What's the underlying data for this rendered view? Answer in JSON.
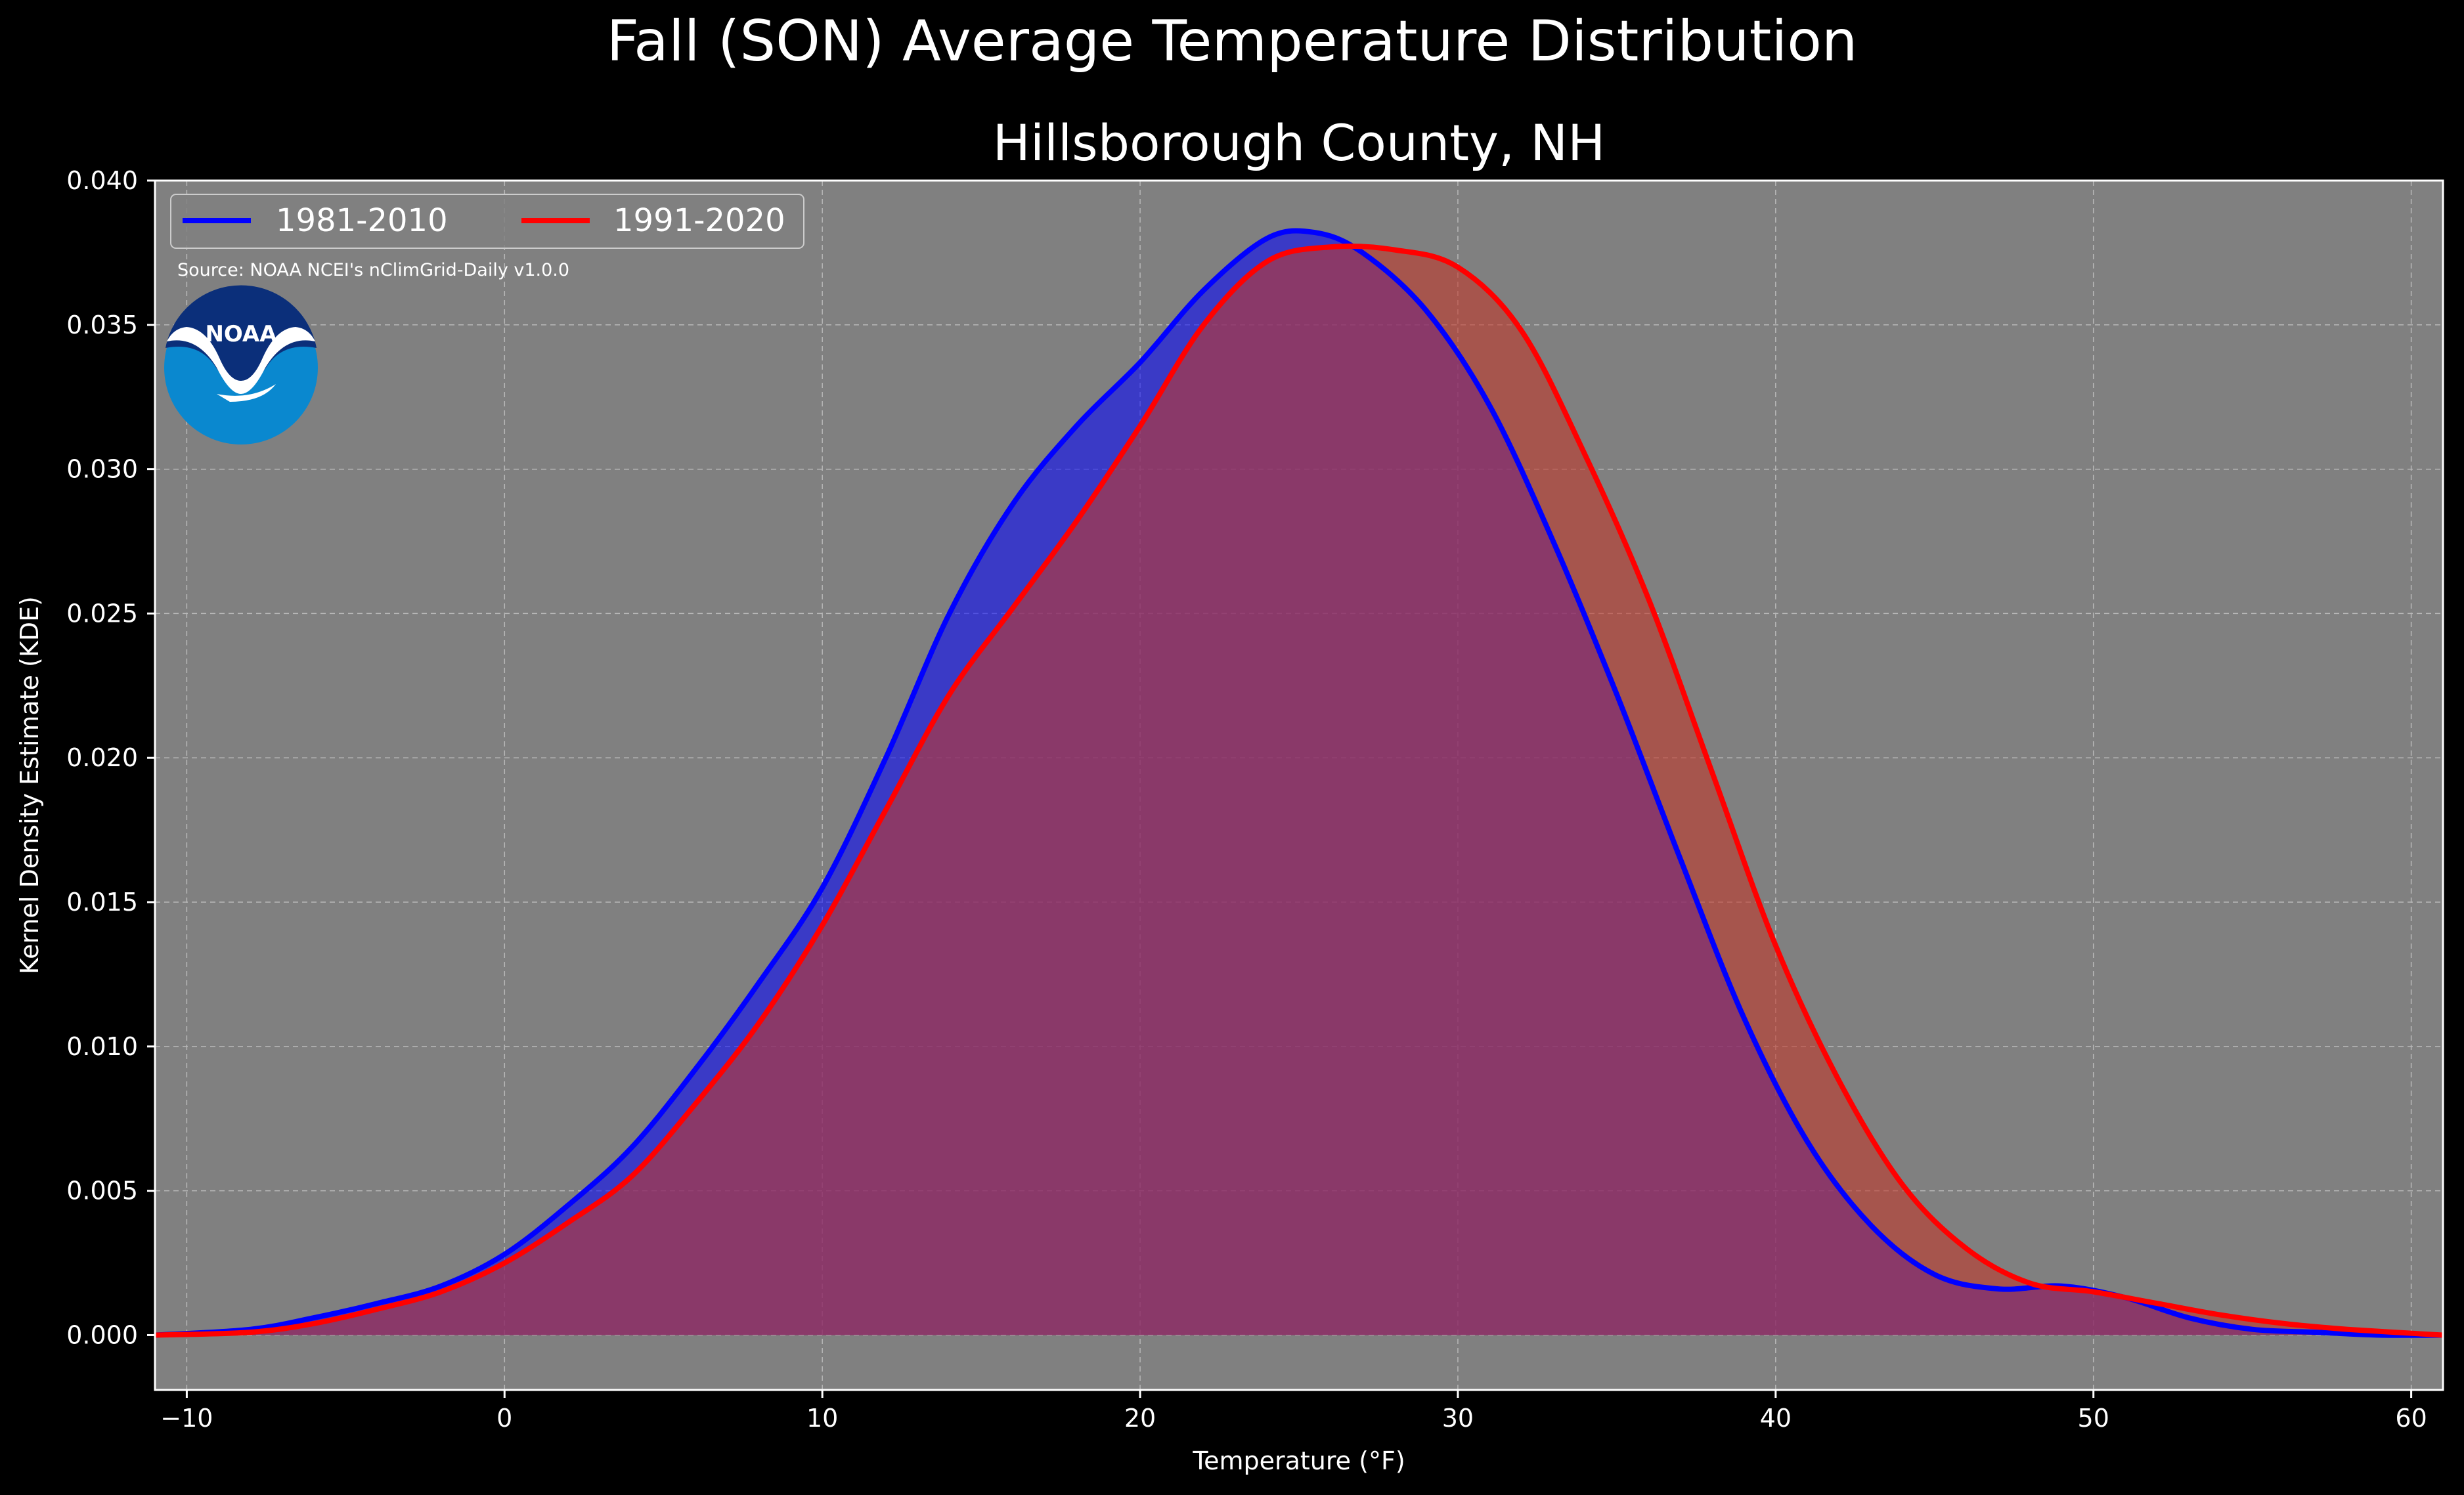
{
  "chart_data": {
    "type": "area",
    "title": "Fall (SON) Average Temperature Distribution",
    "subtitle": "Hillsborough County, NH",
    "xlabel": "Temperature (°F)",
    "ylabel": "Kernel Density Estimate (KDE)",
    "xlim": [
      -11,
      61
    ],
    "ylim": [
      -0.0019,
      0.04
    ],
    "xticks": [
      -10,
      0,
      10,
      20,
      30,
      40,
      50,
      60
    ],
    "xtick_labels": [
      "−10",
      "0",
      "10",
      "20",
      "30",
      "40",
      "50",
      "60"
    ],
    "yticks": [
      0.0,
      0.005,
      0.01,
      0.015,
      0.02,
      0.025,
      0.03,
      0.035,
      0.04
    ],
    "ytick_labels": [
      "0.000",
      "0.005",
      "0.010",
      "0.015",
      "0.020",
      "0.025",
      "0.030",
      "0.035",
      "0.040"
    ],
    "grid": true,
    "legend_position": "top-left",
    "background": "#808080",
    "annotation": "Source: NOAA NCEI's nClimGrid-Daily v1.0.0",
    "logo_text": "NOAA",
    "series": [
      {
        "name": "1981-2010",
        "color": "#0000ff",
        "fill": "#0000ff",
        "x": [
          -11,
          -8,
          -6,
          -4,
          -2,
          0,
          2,
          4,
          6,
          8,
          10,
          12,
          14,
          16,
          18,
          20,
          22,
          24,
          25.5,
          27,
          29,
          31,
          33,
          35,
          37,
          39,
          41,
          43,
          45,
          47,
          49,
          51,
          53,
          55,
          57,
          59,
          61
        ],
        "y": [
          0.0,
          0.0002,
          0.0006,
          0.0011,
          0.0017,
          0.0028,
          0.0045,
          0.0065,
          0.0092,
          0.0122,
          0.0155,
          0.02,
          0.025,
          0.0288,
          0.0315,
          0.0337,
          0.0362,
          0.038,
          0.0382,
          0.0375,
          0.0355,
          0.0322,
          0.0275,
          0.0222,
          0.0165,
          0.011,
          0.0067,
          0.0038,
          0.0021,
          0.0016,
          0.0017,
          0.0013,
          0.0006,
          0.0002,
          0.0001,
          0.0,
          0.0
        ]
      },
      {
        "name": "1991-2020",
        "color": "#ff0000",
        "fill": "#c0392b",
        "x": [
          -11,
          -8,
          -6,
          -4,
          -2,
          0,
          2,
          4,
          6,
          8,
          10,
          12,
          14,
          16,
          18,
          20,
          22,
          24,
          26,
          28,
          30,
          32,
          34,
          36,
          38,
          40,
          42,
          44,
          46,
          48,
          50,
          52,
          54,
          56,
          58,
          61
        ],
        "y": [
          0.0,
          0.0001,
          0.0004,
          0.0009,
          0.0015,
          0.0025,
          0.0039,
          0.0055,
          0.008,
          0.0108,
          0.0142,
          0.0182,
          0.0222,
          0.0252,
          0.0282,
          0.0315,
          0.035,
          0.0372,
          0.0377,
          0.0376,
          0.037,
          0.0348,
          0.0305,
          0.0255,
          0.0195,
          0.0135,
          0.0088,
          0.0052,
          0.003,
          0.0018,
          0.0015,
          0.0011,
          0.0007,
          0.0004,
          0.0002,
          0.0
        ]
      }
    ]
  }
}
